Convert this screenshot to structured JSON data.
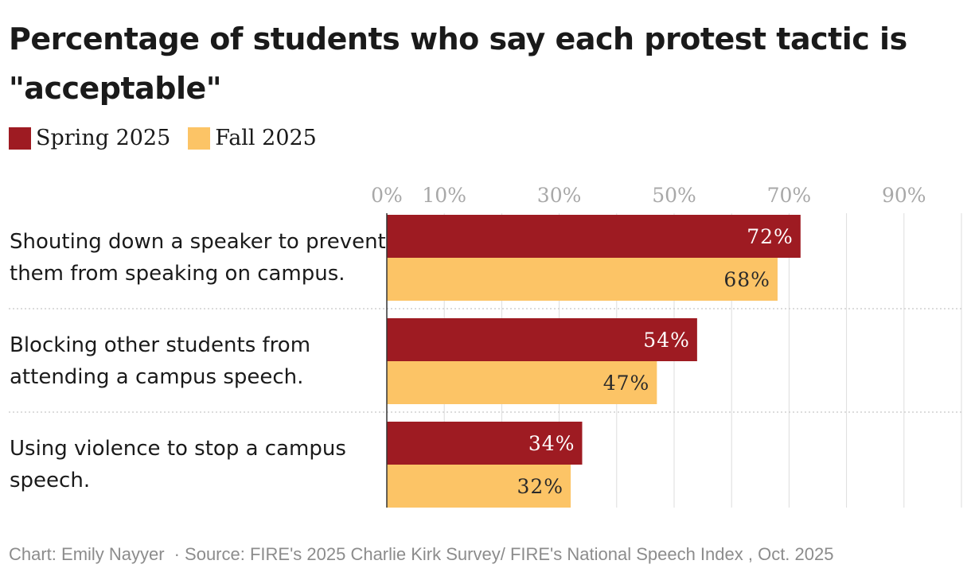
{
  "chart_data": {
    "type": "bar",
    "orientation": "horizontal",
    "title": "Percentage of students who say each protest tactic is \"acceptable\"",
    "categories": [
      "Shouting down a speaker to prevent them from speaking on campus.",
      "Blocking other students from attending a campus speech.",
      "Using violence to stop a campus speech."
    ],
    "category_lines": [
      [
        "Shouting down a speaker to prevent",
        "them from speaking on campus."
      ],
      [
        "Blocking other students from",
        "attending a campus speech."
      ],
      [
        "Using violence to stop a campus",
        "speech."
      ]
    ],
    "series": [
      {
        "name": "Spring 2025",
        "color": "#9e1b22",
        "values": [
          72,
          54,
          34
        ],
        "labels": [
          "72%",
          "54%",
          "34%"
        ]
      },
      {
        "name": "Fall 2025",
        "color": "#fcc466",
        "values": [
          68,
          47,
          32
        ],
        "labels": [
          "68%",
          "47%",
          "32%"
        ]
      }
    ],
    "xlim": [
      0,
      100
    ],
    "x_ticks": [
      0,
      10,
      30,
      50,
      70,
      90
    ],
    "x_tick_labels": [
      "0%",
      "10%",
      "30%",
      "50%",
      "70%",
      "90%"
    ],
    "gridlines": [
      0,
      10,
      20,
      30,
      40,
      50,
      60,
      70,
      80,
      90,
      100
    ],
    "grid": true,
    "legend_position": "top-left"
  },
  "footer": {
    "credit": "Chart: Emily Nayyer",
    "source": "· Source: FIRE's 2025 Charlie Kirk Survey/ FIRE's National Speech Index , Oct. 2025"
  }
}
